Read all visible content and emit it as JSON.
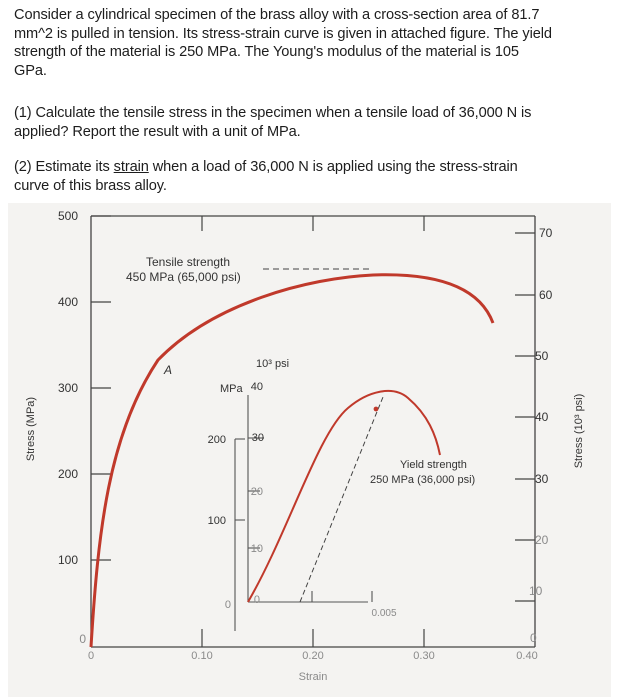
{
  "problem": {
    "intro": {
      "line1": "Consider a cylindrical specimen of the brass alloy with a cross-section area of 81.7",
      "line2": "mm^2 is pulled in tension. Its stress-strain curve is given in attached figure. The yield",
      "line3": "strength of the material is 250 MPa. The Young's modulus of the material is 105",
      "line4": "GPa."
    },
    "q1": {
      "line1": "(1) Calculate the tensile stress in the specimen when a tensile load of 36,000 N is",
      "line2": "applied? Report the result with a unit of MPa."
    },
    "q2": {
      "prefix": "(2) Estimate its ",
      "underlined": "strain",
      "suffix": " when a load of 36,000 N  is applied using the stress-strain",
      "line2": "curve of this brass alloy."
    }
  },
  "figure": {
    "left_axis_label": "Stress (MPa)",
    "right_axis_label": "Stress (10³ psi)",
    "x_axis_label": "Strain",
    "left_ticks": [
      "500",
      "400",
      "300",
      "200",
      "100",
      "0"
    ],
    "right_ticks": [
      "70",
      "60",
      "50",
      "40",
      "30",
      "20",
      "10",
      "0"
    ],
    "x_ticks": [
      "0",
      "0.10",
      "0.20",
      "0.30",
      "0.40"
    ],
    "tensile_label_line1": "Tensile strength",
    "tensile_label_line2": "450 MPa (65,000 psi)",
    "point_marker": "A",
    "inset": {
      "psi_unit": "10³ psi",
      "mpa_unit": "MPa",
      "psi_ticks": [
        "40",
        "30",
        "20",
        "10",
        "0"
      ],
      "mpa_ticks": [
        "200",
        "100",
        "0"
      ],
      "x_tick": "0.005",
      "yield_line1": "Yield strength",
      "yield_line2": "250 MPa (36,000 psi)"
    },
    "colors": {
      "curve": "#c0392b",
      "axes": "#333333",
      "background": "#f4f3f1"
    }
  }
}
